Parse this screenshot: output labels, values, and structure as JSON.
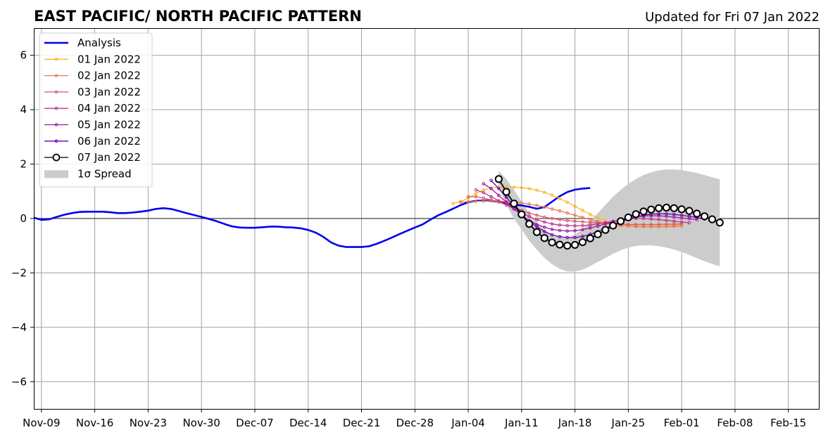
{
  "chart_data": {
    "type": "line",
    "title": "EAST PACIFIC/ NORTH PACIFIC PATTERN",
    "subtitle": "Updated for Fri 07 Jan 2022",
    "xlabel": "",
    "ylabel": "",
    "xlim": [
      "2021-11-08",
      "2022-02-19"
    ],
    "ylim": [
      -7,
      7
    ],
    "x_ticks": [
      "Nov-09",
      "Nov-16",
      "Nov-23",
      "Nov-30",
      "Dec-07",
      "Dec-14",
      "Dec-21",
      "Dec-28",
      "Jan-04",
      "Jan-11",
      "Jan-18",
      "Jan-25",
      "Feb-01",
      "Feb-08",
      "Feb-15"
    ],
    "x_tick_dates": [
      "2021-11-09",
      "2021-11-16",
      "2021-11-23",
      "2021-11-30",
      "2021-12-07",
      "2021-12-14",
      "2021-12-21",
      "2021-12-28",
      "2022-01-04",
      "2022-01-11",
      "2022-01-18",
      "2022-01-25",
      "2022-02-01",
      "2022-02-08",
      "2022-02-15"
    ],
    "y_ticks": [
      -6,
      -4,
      -2,
      0,
      2,
      4,
      6
    ],
    "grid": true,
    "zero_line": true,
    "legend_placement": "top-left",
    "series": [
      {
        "name": "Analysis",
        "color": "#0000ee",
        "marker": "none",
        "start": "2021-11-08",
        "values": [
          0.03,
          -0.05,
          -0.03,
          0.06,
          0.14,
          0.2,
          0.24,
          0.25,
          0.25,
          0.25,
          0.23,
          0.2,
          0.2,
          0.22,
          0.25,
          0.29,
          0.35,
          0.38,
          0.35,
          0.28,
          0.2,
          0.13,
          0.06,
          -0.02,
          -0.1,
          -0.2,
          -0.29,
          -0.33,
          -0.34,
          -0.34,
          -0.32,
          -0.3,
          -0.3,
          -0.32,
          -0.33,
          -0.36,
          -0.42,
          -0.52,
          -0.68,
          -0.88,
          -1.0,
          -1.05,
          -1.05,
          -1.05,
          -1.02,
          -0.93,
          -0.82,
          -0.7,
          -0.57,
          -0.45,
          -0.33,
          -0.22,
          -0.05,
          0.11,
          0.23,
          0.36,
          0.49,
          0.6,
          0.65,
          0.66,
          0.65,
          0.62,
          0.55,
          0.51,
          0.48,
          0.43,
          0.36,
          0.42,
          0.62,
          0.82,
          0.97,
          1.06,
          1.1,
          1.12
        ]
      },
      {
        "name": "01 Jan 2022",
        "color": "#fdb42f",
        "marker": "dot",
        "start": "2022-01-02",
        "values": [
          0.55,
          0.62,
          0.75,
          0.92,
          1.05,
          1.12,
          1.15,
          1.15,
          1.15,
          1.13,
          1.1,
          1.04,
          0.96,
          0.86,
          0.73,
          0.6,
          0.45,
          0.3,
          0.15,
          0.02,
          -0.08,
          -0.15,
          -0.2,
          -0.24,
          -0.27,
          -0.28,
          -0.28,
          -0.28,
          -0.27,
          -0.25,
          -0.22
        ]
      },
      {
        "name": "02 Jan 2022",
        "color": "#ed7953",
        "marker": "dot",
        "start": "2022-01-03",
        "values": [
          0.6,
          0.62,
          0.63,
          0.64,
          0.65,
          0.64,
          0.62,
          0.6,
          0.57,
          0.53,
          0.48,
          0.42,
          0.35,
          0.28,
          0.2,
          0.12,
          0.04,
          -0.04,
          -0.11,
          -0.17,
          -0.22,
          -0.26,
          -0.28,
          -0.3,
          -0.3,
          -0.3,
          -0.3,
          -0.3,
          -0.29,
          -0.28
        ]
      },
      {
        "name": "03 Jan 2022",
        "color": "#d8576b",
        "marker": "dot",
        "start": "2022-01-04",
        "values": [
          0.8,
          0.8,
          0.75,
          0.68,
          0.6,
          0.5,
          0.4,
          0.3,
          0.2,
          0.12,
          0.05,
          0.0,
          -0.04,
          -0.08,
          -0.1,
          -0.12,
          -0.14,
          -0.16,
          -0.18,
          -0.2,
          -0.21,
          -0.22,
          -0.22,
          -0.22,
          -0.22,
          -0.22,
          -0.21,
          -0.21,
          -0.2
        ]
      },
      {
        "name": "04 Jan 2022",
        "color": "#bd3786",
        "marker": "dot",
        "start": "2022-01-05",
        "values": [
          1.05,
          0.95,
          0.8,
          0.65,
          0.5,
          0.35,
          0.2,
          0.07,
          -0.05,
          -0.13,
          -0.2,
          -0.24,
          -0.26,
          -0.27,
          -0.26,
          -0.24,
          -0.2,
          -0.15,
          -0.1,
          -0.06,
          -0.02,
          0.0,
          0.0,
          -0.02,
          -0.04,
          -0.07,
          -0.1,
          -0.13,
          -0.16
        ]
      },
      {
        "name": "05 Jan 2022",
        "color": "#9c179e",
        "marker": "dot",
        "start": "2022-01-06",
        "values": [
          1.28,
          1.1,
          0.85,
          0.6,
          0.35,
          0.12,
          -0.08,
          -0.22,
          -0.32,
          -0.4,
          -0.44,
          -0.46,
          -0.45,
          -0.41,
          -0.35,
          -0.28,
          -0.2,
          -0.12,
          -0.04,
          0.02,
          0.06,
          0.09,
          0.1,
          0.1,
          0.08,
          0.05,
          0.02,
          -0.01,
          -0.04
        ]
      },
      {
        "name": "06 Jan 2022",
        "color": "#6a00a8",
        "marker": "dot",
        "start": "2022-01-07",
        "values": [
          1.4,
          1.1,
          0.78,
          0.45,
          0.15,
          -0.1,
          -0.3,
          -0.48,
          -0.6,
          -0.67,
          -0.7,
          -0.7,
          -0.66,
          -0.58,
          -0.48,
          -0.36,
          -0.24,
          -0.12,
          -0.02,
          0.06,
          0.12,
          0.16,
          0.17,
          0.17,
          0.15,
          0.12,
          0.08,
          0.03,
          -0.02
        ]
      },
      {
        "name": "07 Jan 2022",
        "color": "#000000",
        "marker": "circle",
        "start": "2022-01-08",
        "values": [
          1.45,
          0.98,
          0.55,
          0.15,
          -0.2,
          -0.5,
          -0.72,
          -0.88,
          -0.96,
          -1.0,
          -0.97,
          -0.87,
          -0.73,
          -0.58,
          -0.42,
          -0.26,
          -0.1,
          0.04,
          0.16,
          0.26,
          0.33,
          0.38,
          0.4,
          0.38,
          0.34,
          0.28,
          0.18,
          0.08,
          -0.03,
          -0.15
        ]
      }
    ],
    "spread": {
      "name": "1σ Spread",
      "legend_label": "1σ Spread",
      "color": "#cccccc",
      "start": "2022-01-08",
      "upper": [
        1.75,
        1.45,
        1.05,
        0.62,
        0.2,
        -0.15,
        -0.42,
        -0.6,
        -0.7,
        -0.72,
        -0.6,
        -0.38,
        -0.1,
        0.2,
        0.5,
        0.8,
        1.05,
        1.27,
        1.45,
        1.6,
        1.7,
        1.77,
        1.8,
        1.8,
        1.78,
        1.73,
        1.67,
        1.6,
        1.52,
        1.44
      ],
      "lower": [
        1.15,
        0.5,
        0.0,
        -0.4,
        -0.82,
        -1.15,
        -1.45,
        -1.68,
        -1.85,
        -1.95,
        -1.95,
        -1.88,
        -1.75,
        -1.6,
        -1.45,
        -1.3,
        -1.17,
        -1.07,
        -1.01,
        -0.99,
        -0.99,
        -1.02,
        -1.07,
        -1.14,
        -1.23,
        -1.34,
        -1.46,
        -1.57,
        -1.67,
        -1.76
      ]
    }
  }
}
